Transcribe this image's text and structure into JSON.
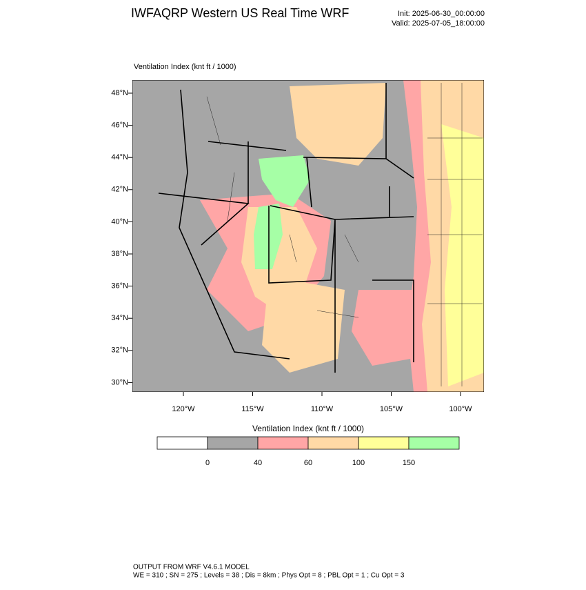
{
  "header": {
    "title": "IWFAQRP Western US Real Time WRF",
    "init": "Init: 2025-06-30_00:00:00",
    "valid": "Valid: 2025-07-05_18:00:00"
  },
  "map": {
    "title": "Ventilation Index   (knt ft / 1000)",
    "lat_labels": [
      "48°N",
      "46°N",
      "44°N",
      "42°N",
      "40°N",
      "38°N",
      "36°N",
      "34°N",
      "32°N",
      "30°N"
    ],
    "lon_labels": [
      "120°W",
      "115°W",
      "110°W",
      "105°W",
      "100°W"
    ]
  },
  "colorbar": {
    "title": "Ventilation Index   (knt ft / 1000)",
    "colors": [
      "#ffffff",
      "#a6a6a6",
      "#ffa6a6",
      "#ffd9a6",
      "#ffff99",
      "#a6ffa6"
    ],
    "labels": [
      "0",
      "40",
      "60",
      "100",
      "150"
    ]
  },
  "footer": {
    "line1": "OUTPUT FROM WRF V4.6.1 MODEL",
    "line2": "WE = 310 ; SN = 275 ; Levels = 38 ; Dis = 8km ; Phys Opt = 8 ; PBL Opt = 1 ; Cu Opt = 3"
  }
}
